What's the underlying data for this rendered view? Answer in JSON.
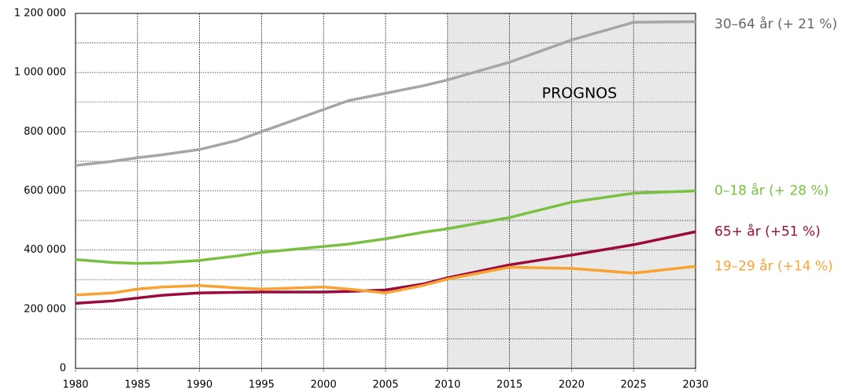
{
  "chart_data": {
    "type": "line",
    "annotation": "PROGNOS",
    "forecast_start": 2010,
    "x": [
      1980,
      1983,
      1985,
      1987,
      1990,
      1993,
      1995,
      2000,
      2002,
      2005,
      2008,
      2010,
      2015,
      2020,
      2025,
      2030
    ],
    "series": [
      {
        "name": "30–64 år (+ 21 %)",
        "color": "#a6a6a6",
        "values": [
          686000,
          700000,
          712000,
          722000,
          740000,
          770000,
          800000,
          875000,
          905000,
          930000,
          955000,
          975000,
          1035000,
          1110000,
          1170000,
          1172000
        ]
      },
      {
        "name": "0–18 år (+ 28 %)",
        "color": "#7ac143",
        "values": [
          368000,
          358000,
          355000,
          357000,
          365000,
          380000,
          392000,
          412000,
          420000,
          438000,
          460000,
          472000,
          510000,
          562000,
          592000,
          600000
        ]
      },
      {
        "name": "65+ år (+51 %)",
        "color": "#9b0a3c",
        "values": [
          220000,
          228000,
          238000,
          247000,
          255000,
          257000,
          258000,
          258000,
          260000,
          265000,
          285000,
          306000,
          350000,
          383000,
          418000,
          462000
        ]
      },
      {
        "name": "19–29 år (+14 %)",
        "color": "#f7a333",
        "values": [
          248000,
          255000,
          268000,
          275000,
          280000,
          272000,
          268000,
          275000,
          268000,
          255000,
          280000,
          302000,
          342000,
          338000,
          322000,
          345000
        ]
      }
    ],
    "xlim": [
      1980,
      2030
    ],
    "xticks": [
      1980,
      1985,
      1990,
      1995,
      2000,
      2005,
      2010,
      2015,
      2020,
      2025,
      2030
    ],
    "ylim": [
      0,
      1200000
    ],
    "yticks": [
      0,
      {
        "value": 200000,
        "label": "200 000"
      },
      {
        "value": 400000,
        "label": "400 000"
      },
      {
        "value": 600000,
        "label": "600 000"
      },
      {
        "value": 800000,
        "label": "800 000"
      },
      {
        "value": 1000000,
        "label": "1 000 000"
      },
      {
        "value": 1200000,
        "label": "1 200 000"
      }
    ],
    "yminorticks": [
      100000,
      300000,
      500000,
      700000,
      900000,
      1100000
    ],
    "grid": true
  }
}
